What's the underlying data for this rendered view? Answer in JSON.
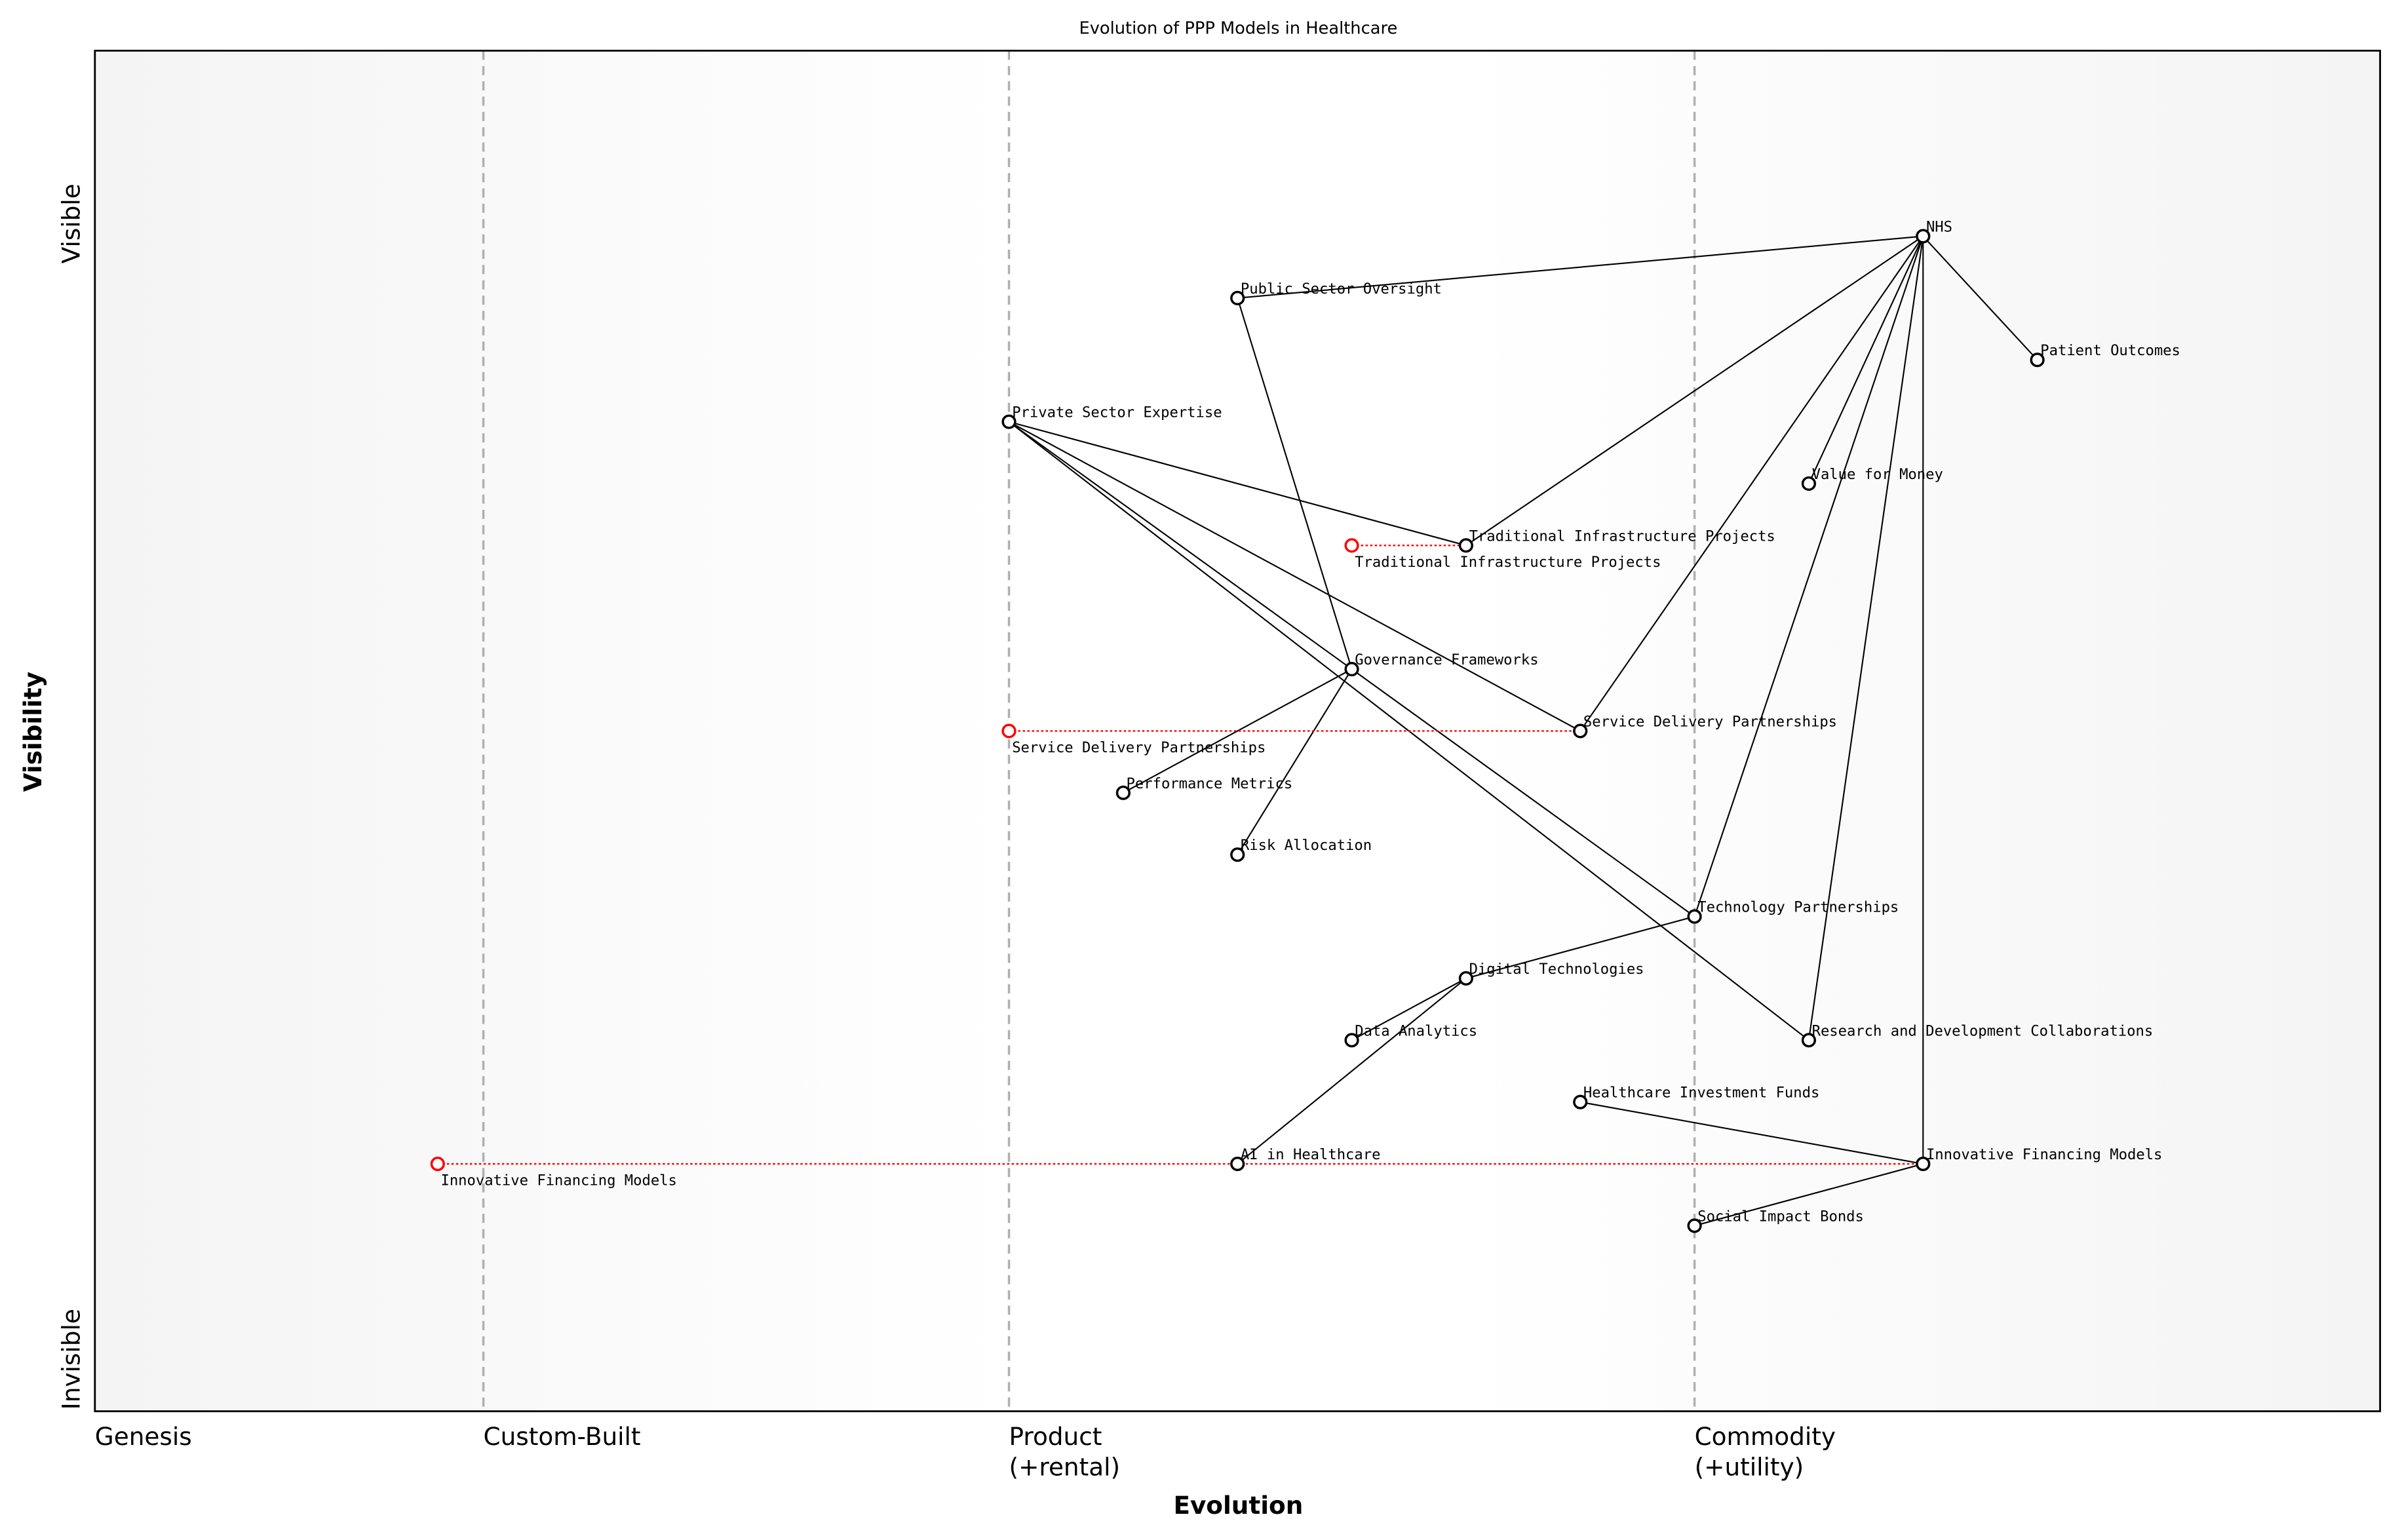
{
  "title": "Evolution of PPP Models in Healthcare",
  "x_axis": {
    "label": "Evolution",
    "range": [
      0,
      1
    ],
    "stages": [
      {
        "value": 0.0,
        "lines": [
          "Genesis"
        ]
      },
      {
        "value": 0.17,
        "lines": [
          "Custom-Built"
        ]
      },
      {
        "value": 0.4,
        "lines": [
          "Product",
          "(+rental)"
        ]
      },
      {
        "value": 0.7,
        "lines": [
          "Commodity",
          "(+utility)"
        ]
      }
    ]
  },
  "y_axis": {
    "label": "Visibility",
    "range": [
      0,
      1.1
    ],
    "top_label": "Visible",
    "bottom_label": "Invisible"
  },
  "colors": {
    "node": "#000000",
    "evolve_node": "#ff0000",
    "evolve_line": "#ff0000",
    "stage_line": "#b0b0b0",
    "edge_bg": "#f4f4f4"
  },
  "nodes": [
    {
      "id": "nhs",
      "label": "NHS",
      "evolution": 0.8,
      "visibility": 0.95
    },
    {
      "id": "pso",
      "label": "Public Sector Oversight",
      "evolution": 0.5,
      "visibility": 0.9
    },
    {
      "id": "po",
      "label": "Patient Outcomes",
      "evolution": 0.85,
      "visibility": 0.85
    },
    {
      "id": "pse",
      "label": "Private Sector Expertise",
      "evolution": 0.4,
      "visibility": 0.8
    },
    {
      "id": "vfm",
      "label": "Value for Money",
      "evolution": 0.75,
      "visibility": 0.75
    },
    {
      "id": "tip",
      "label": "Traditional Infrastructure Projects",
      "evolution": 0.6,
      "visibility": 0.7
    },
    {
      "id": "gov",
      "label": "Governance Frameworks",
      "evolution": 0.55,
      "visibility": 0.6
    },
    {
      "id": "sdp",
      "label": "Service Delivery Partnerships",
      "evolution": 0.65,
      "visibility": 0.55
    },
    {
      "id": "pm",
      "label": "Performance Metrics",
      "evolution": 0.45,
      "visibility": 0.5
    },
    {
      "id": "ra",
      "label": "Risk Allocation",
      "evolution": 0.5,
      "visibility": 0.45
    },
    {
      "id": "tp",
      "label": "Technology Partnerships",
      "evolution": 0.7,
      "visibility": 0.4
    },
    {
      "id": "dt",
      "label": "Digital Technologies",
      "evolution": 0.6,
      "visibility": 0.35
    },
    {
      "id": "da",
      "label": "Data Analytics",
      "evolution": 0.55,
      "visibility": 0.3
    },
    {
      "id": "rd",
      "label": "Research and Development Collaborations",
      "evolution": 0.75,
      "visibility": 0.3
    },
    {
      "id": "hif",
      "label": "Healthcare Investment Funds",
      "evolution": 0.65,
      "visibility": 0.25
    },
    {
      "id": "ifm",
      "label": "Innovative Financing Models",
      "evolution": 0.8,
      "visibility": 0.2
    },
    {
      "id": "ai",
      "label": "AI in Healthcare",
      "evolution": 0.5,
      "visibility": 0.2
    },
    {
      "id": "sib",
      "label": "Social Impact Bonds",
      "evolution": 0.7,
      "visibility": 0.15
    }
  ],
  "edges": [
    [
      "nhs",
      "pso"
    ],
    [
      "nhs",
      "po"
    ],
    [
      "nhs",
      "tip"
    ],
    [
      "nhs",
      "sdp"
    ],
    [
      "nhs",
      "vfm"
    ],
    [
      "nhs",
      "tp"
    ],
    [
      "nhs",
      "rd"
    ],
    [
      "nhs",
      "ifm"
    ],
    [
      "pse",
      "tip"
    ],
    [
      "pse",
      "sdp"
    ],
    [
      "pse",
      "tp"
    ],
    [
      "pse",
      "rd"
    ],
    [
      "pso",
      "gov"
    ],
    [
      "gov",
      "pm"
    ],
    [
      "gov",
      "ra"
    ],
    [
      "tp",
      "dt"
    ],
    [
      "dt",
      "da"
    ],
    [
      "dt",
      "ai"
    ],
    [
      "ifm",
      "hif"
    ],
    [
      "ifm",
      "sib"
    ]
  ],
  "evolutions": [
    {
      "label": "Traditional Infrastructure Projects",
      "from": 0.55,
      "to": 0.6,
      "visibility": 0.7
    },
    {
      "label": "Service Delivery Partnerships",
      "from": 0.4,
      "to": 0.65,
      "visibility": 0.55
    },
    {
      "label": "Innovative Financing Models",
      "from": 0.15,
      "to": 0.8,
      "visibility": 0.2
    }
  ]
}
